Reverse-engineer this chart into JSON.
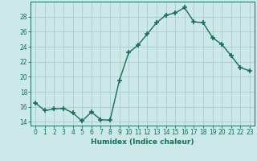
{
  "x": [
    0,
    1,
    2,
    3,
    4,
    5,
    6,
    7,
    8,
    9,
    10,
    11,
    12,
    13,
    14,
    15,
    16,
    17,
    18,
    19,
    20,
    21,
    22,
    23
  ],
  "y": [
    16.5,
    15.5,
    15.7,
    15.8,
    15.2,
    14.1,
    15.3,
    14.3,
    14.2,
    19.5,
    23.2,
    24.2,
    25.7,
    27.2,
    28.2,
    28.5,
    29.2,
    27.3,
    27.2,
    25.2,
    24.3,
    22.8,
    21.2,
    20.8
  ],
  "line_color": "#1a6b5a",
  "marker": "+",
  "markersize": 4,
  "linewidth": 1.0,
  "bg_color": "#cce8e8",
  "grid_color": "#aacccc",
  "xlabel": "Humidex (Indice chaleur)",
  "ylim": [
    13.5,
    30
  ],
  "xlim": [
    -0.5,
    23.5
  ],
  "yticks": [
    14,
    16,
    18,
    20,
    22,
    24,
    26,
    28
  ],
  "xticks": [
    0,
    1,
    2,
    3,
    4,
    5,
    6,
    7,
    8,
    9,
    10,
    11,
    12,
    13,
    14,
    15,
    16,
    17,
    18,
    19,
    20,
    21,
    22,
    23
  ],
  "tick_label_size": 5.5,
  "xlabel_size": 6.5
}
